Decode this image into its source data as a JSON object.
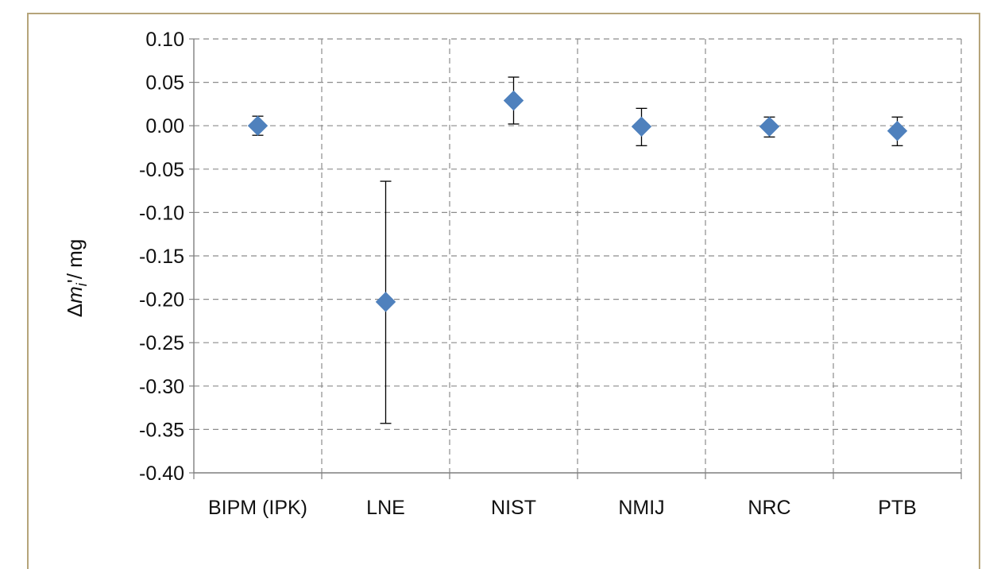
{
  "chart_data": {
    "type": "scatter",
    "categories": [
      "BIPM (IPK)",
      "LNE",
      "NIST",
      "NMIJ",
      "NRC",
      "PTB"
    ],
    "series": [
      {
        "values": [
          0.0,
          -0.203,
          0.029,
          -0.001,
          -0.001,
          -0.006
        ],
        "error_low": [
          -0.011,
          -0.343,
          0.002,
          -0.023,
          -0.013,
          -0.023
        ],
        "error_high": [
          0.011,
          -0.064,
          0.056,
          0.02,
          0.01,
          0.01
        ]
      }
    ],
    "ylabel": {
      "prefix": "Δ",
      "var": "m",
      "sub": "i",
      "suffix": "'/ mg"
    },
    "ylim": [
      -0.4,
      0.1
    ],
    "ytick_labels": [
      "0.10",
      "0.05",
      "0.00",
      "-0.05",
      "-0.10",
      "-0.15",
      "-0.20",
      "-0.25",
      "-0.30",
      "-0.35",
      "-0.40"
    ],
    "grid": true,
    "legend": "none",
    "colors": {
      "marker": "#4f81bd",
      "error_bar": "#000000",
      "grid": "#8c8c8c",
      "frame": "#b5a47a"
    },
    "marker_icon": "diamond"
  }
}
